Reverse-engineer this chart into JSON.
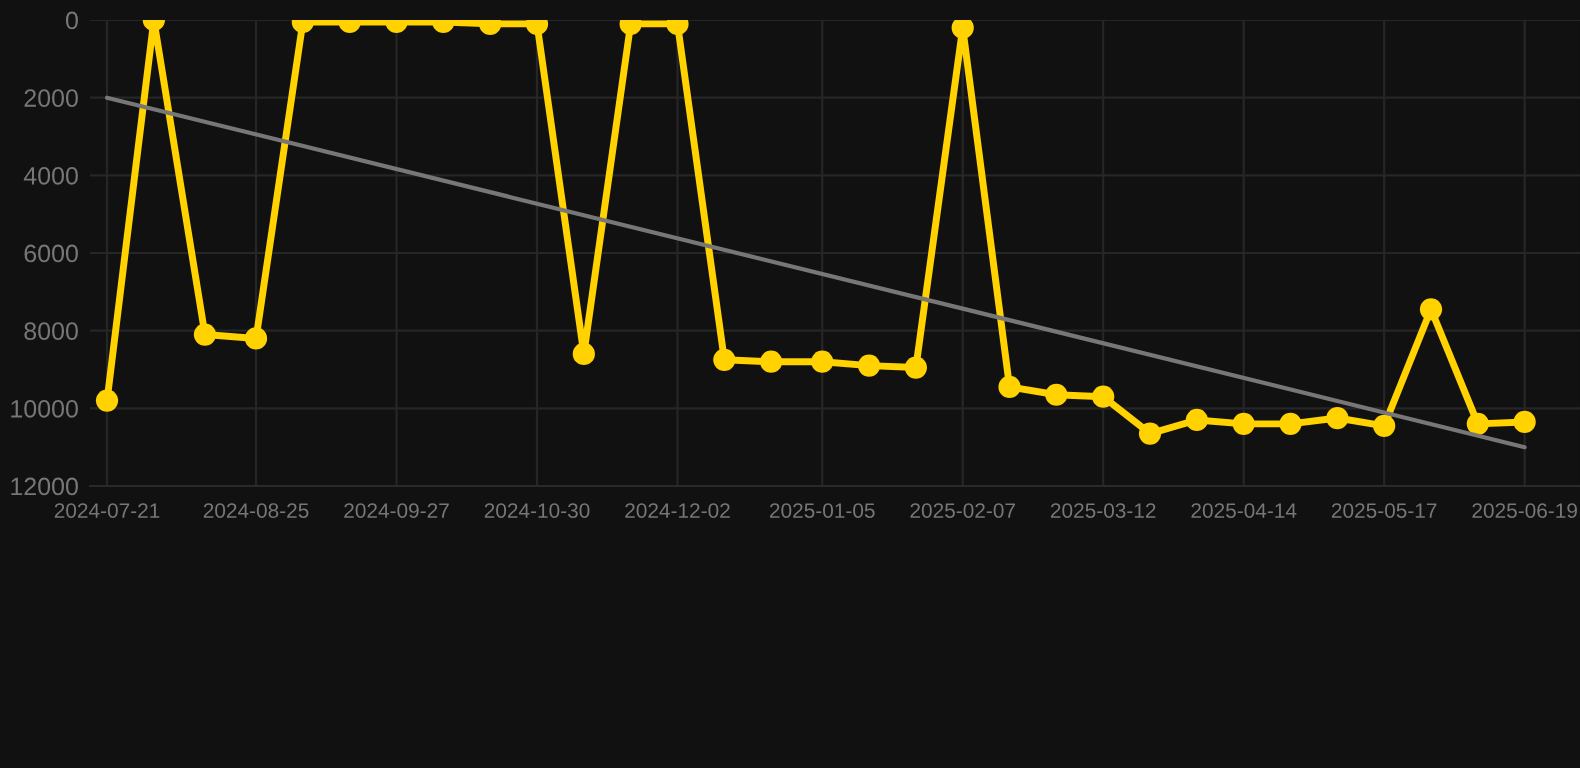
{
  "chart_data": {
    "type": "line",
    "marker": "circle",
    "line_style": "solid",
    "grid": true,
    "x": [
      "2024-07-21",
      "2024-08-01",
      "2024-08-13",
      "2024-08-25",
      "2024-09-05",
      "2024-09-16",
      "2024-09-27",
      "2024-10-08",
      "2024-10-19",
      "2024-10-30",
      "2024-11-10",
      "2024-11-21",
      "2024-12-02",
      "2024-12-13",
      "2024-12-24",
      "2025-01-05",
      "2025-01-16",
      "2025-01-27",
      "2025-02-07",
      "2025-02-18",
      "2025-03-01",
      "2025-03-12",
      "2025-03-23",
      "2025-04-03",
      "2025-04-14",
      "2025-04-25",
      "2025-05-06",
      "2025-05-17",
      "2025-05-28",
      "2025-06-08",
      "2025-06-19"
    ],
    "series": [
      {
        "color": "#ffd200",
        "values": [
          9800,
          0,
          8100,
          8200,
          50,
          50,
          50,
          50,
          100,
          100,
          8600,
          100,
          100,
          8750,
          8800,
          8800,
          8900,
          8950,
          200,
          9450,
          9650,
          9700,
          10650,
          10300,
          10400,
          10400,
          10250,
          10450,
          7450,
          10400,
          10350
        ]
      },
      {
        "type": "line",
        "color": "#777777",
        "marker": "none",
        "x": [
          "2024-07-21",
          "2025-06-19"
        ],
        "values": [
          2000,
          11000
        ]
      }
    ],
    "xlim": [
      "2024-07-17",
      "2025-07-02"
    ],
    "xticks": [
      "2024-07-21",
      "2024-08-25",
      "2024-09-27",
      "2024-10-30",
      "2024-12-02",
      "2025-01-05",
      "2025-02-07",
      "2025-03-12",
      "2025-04-14",
      "2025-05-17",
      "2025-06-19"
    ],
    "ylim": [
      12000,
      0
    ],
    "yticks": [
      0,
      2000,
      4000,
      6000,
      8000,
      10000,
      12000
    ]
  }
}
